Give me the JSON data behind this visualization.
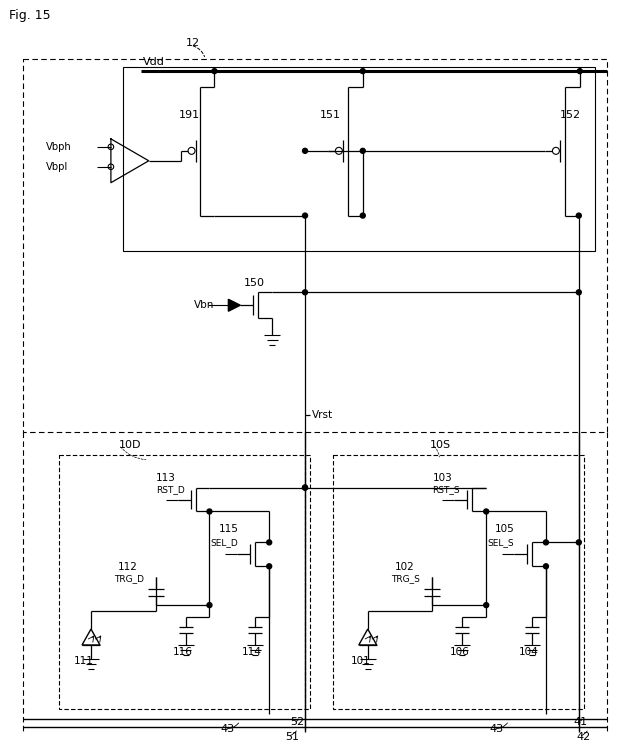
{
  "title": "Fig. 15",
  "label_12": "12",
  "label_191": "191",
  "label_150": "150",
  "label_151": "151",
  "label_152": "152",
  "label_Vdd": "Vdd",
  "label_Vbph": "Vbph",
  "label_Vbpl": "Vbpl",
  "label_Vbn": "Vbn",
  "label_Vrst": "Vrst",
  "label_10D": "10D",
  "label_10S": "10S",
  "label_113": "113",
  "label_RST_D": "RST_D",
  "label_115": "115",
  "label_SEL_D": "SEL_D",
  "label_112": "112",
  "label_TRG_D": "TRG_D",
  "label_111": "111",
  "label_116": "116",
  "label_114": "114",
  "label_103": "103",
  "label_RST_S": "RST_S",
  "label_105": "105",
  "label_SEL_S": "SEL_S",
  "label_102": "102",
  "label_TRG_S": "TRG_S",
  "label_101": "101",
  "label_106": "106",
  "label_104": "104",
  "label_43a": "43",
  "label_43b": "43",
  "label_51": "51",
  "label_52": "52",
  "label_41": "41",
  "label_42": "42"
}
